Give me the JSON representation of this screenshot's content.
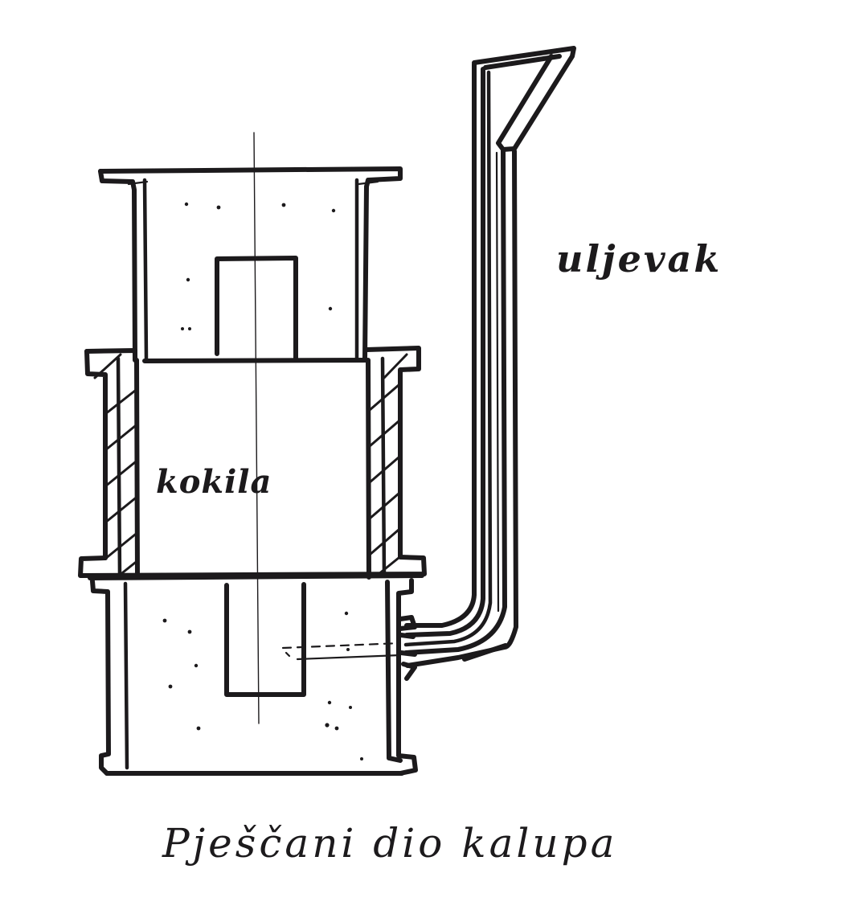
{
  "labels": {
    "sprue": "uljevak",
    "mould": "kokila",
    "caption": "Pješčani dio kalupa"
  },
  "colors": {
    "ink": "#1c1a1c",
    "paper": "#ffffff"
  }
}
